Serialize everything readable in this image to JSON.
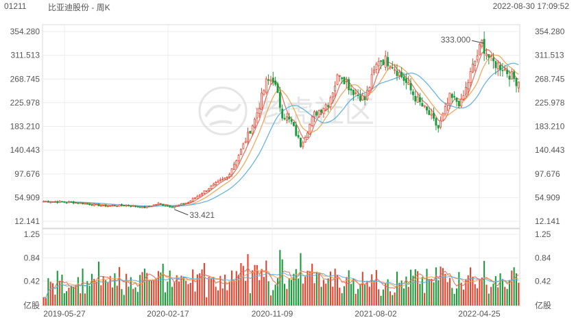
{
  "header": {
    "code": "01211",
    "name": "比亚迪股份 - 周K",
    "timestamp": "2022-08-30 17:09:52"
  },
  "watermark": {
    "text": "老虎社区",
    "icon": "tiger-logo-icon"
  },
  "colors": {
    "up": "#e8412b",
    "down": "#1a9b3a",
    "ma5": "#e36b5a",
    "ma10": "#f0a24e",
    "ma20": "#5aaee0"
  },
  "chart_data": [
    {
      "type": "candlestick",
      "ylim": [
        12.141,
        354.28
      ],
      "ytick_labels": [
        "354.280",
        "311.513",
        "268.745",
        "225.978",
        "183.210",
        "140.443",
        "97.676",
        "54.909",
        "12.141"
      ],
      "xtick_labels": [
        "2019-05-27",
        "2020-02-17",
        "2020-11-09",
        "2021-08-02",
        "2022-04-25"
      ],
      "annotations": [
        {
          "label": "333.000",
          "value": 333.0
        },
        {
          "label": "33.421",
          "value": 33.421
        }
      ],
      "anchors": [
        [
          0,
          48
        ],
        [
          14,
          46
        ],
        [
          26,
          40
        ],
        [
          36,
          41
        ],
        [
          44,
          37
        ],
        [
          50,
          44
        ],
        [
          56,
          38
        ],
        [
          63,
          46
        ],
        [
          72,
          72
        ],
        [
          80,
          92
        ],
        [
          86,
          140
        ],
        [
          92,
          195
        ],
        [
          97,
          262
        ],
        [
          100,
          270
        ],
        [
          104,
          205
        ],
        [
          108,
          190
        ],
        [
          112,
          150
        ],
        [
          118,
          205
        ],
        [
          124,
          226
        ],
        [
          129,
          282
        ],
        [
          134,
          250
        ],
        [
          140,
          232
        ],
        [
          146,
          305
        ],
        [
          151,
          300
        ],
        [
          157,
          268
        ],
        [
          162,
          235
        ],
        [
          168,
          205
        ],
        [
          172,
          180
        ],
        [
          177,
          235
        ],
        [
          182,
          225
        ],
        [
          187,
          290
        ],
        [
          191,
          333
        ],
        [
          195,
          300
        ],
        [
          200,
          290
        ],
        [
          206,
          265
        ]
      ]
    },
    {
      "type": "bar",
      "ylim": [
        0,
        1.25
      ],
      "ytick_labels": [
        "1.25",
        "0.84",
        "0.42",
        "亿股"
      ],
      "unit": "亿股",
      "ma_series": [
        "MA5",
        "MA10",
        "MA20"
      ]
    }
  ]
}
